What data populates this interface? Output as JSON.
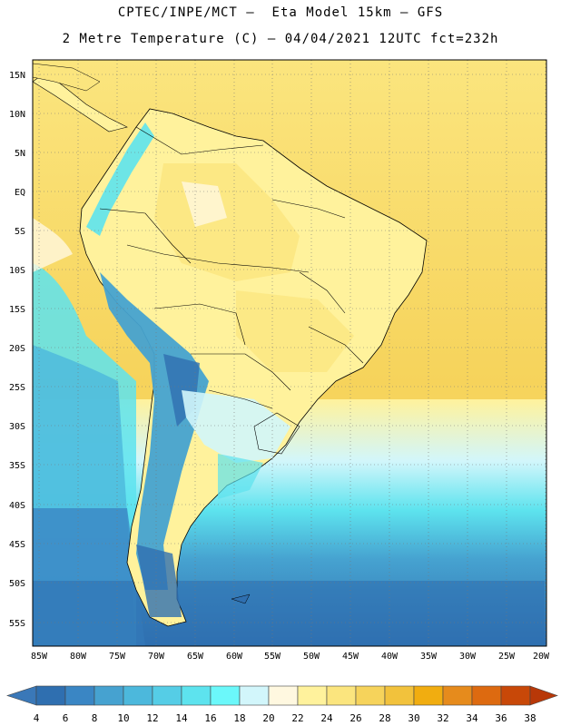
{
  "title_line1": "CPTEC/INPE/MCT –  Eta Model 15km – GFS",
  "title_line2": "2 Metre Temperature (C) – 04/04/2021 12UTC fct=232h",
  "lat_labels": [
    "15N",
    "10N",
    "5N",
    "EQ",
    "5S",
    "10S",
    "15S",
    "20S",
    "25S",
    "30S",
    "35S",
    "40S",
    "45S",
    "50S",
    "55S"
  ],
  "lon_labels": [
    "85W",
    "80W",
    "75W",
    "70W",
    "65W",
    "60W",
    "55W",
    "50W",
    "45W",
    "40W",
    "35W",
    "30W",
    "25W",
    "20W"
  ],
  "colorbar": {
    "ticks": [
      "4",
      "6",
      "8",
      "10",
      "12",
      "14",
      "16",
      "18",
      "20",
      "22",
      "24",
      "26",
      "28",
      "30",
      "32",
      "34",
      "36",
      "38"
    ],
    "colors": [
      "#3a78b8",
      "#2f6fb0",
      "#3a86c4",
      "#46a2d0",
      "#4cb8dc",
      "#55cde6",
      "#5de3ee",
      "#6bf8fa",
      "#d2f6fb",
      "#fff8e0",
      "#fff29c",
      "#fbe57e",
      "#f6d35b",
      "#f2c23c",
      "#f1ad10",
      "#e68b1c",
      "#dd6a10",
      "#c84808",
      "#b83808"
    ]
  }
}
